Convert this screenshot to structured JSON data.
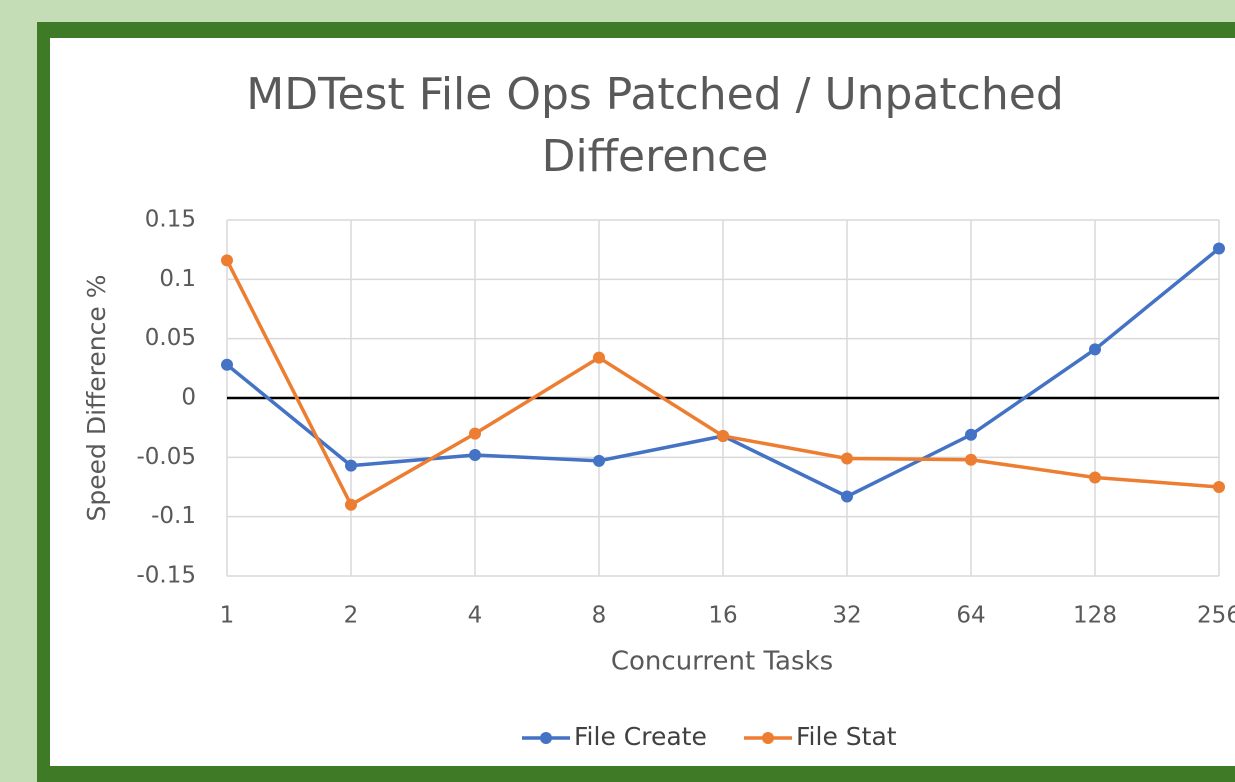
{
  "chart_data": {
    "type": "line",
    "title": "MDTest File Ops Patched / Unpatched Difference",
    "xlabel": "Concurrent Tasks",
    "ylabel": "Speed Difference %",
    "categories": [
      "1",
      "2",
      "4",
      "8",
      "16",
      "32",
      "64",
      "128",
      "256"
    ],
    "series": [
      {
        "name": "File Create",
        "color": "#4472c4",
        "values": [
          0.028,
          -0.057,
          -0.048,
          -0.053,
          -0.032,
          -0.083,
          -0.031,
          0.041,
          0.126
        ]
      },
      {
        "name": "File Stat",
        "color": "#ed7d31",
        "values": [
          0.116,
          -0.09,
          -0.03,
          0.034,
          -0.032,
          -0.051,
          -0.052,
          -0.067,
          -0.075
        ]
      }
    ],
    "ylim": [
      -0.15,
      0.15
    ],
    "yticks": [
      -0.15,
      -0.1,
      -0.05,
      0,
      0.05,
      0.1,
      0.15
    ],
    "grid": true,
    "legend": "bottom"
  }
}
